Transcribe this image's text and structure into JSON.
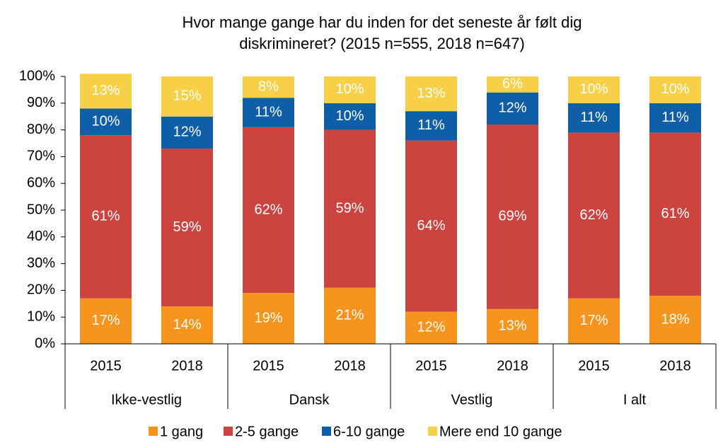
{
  "chart_data": {
    "type": "stacked_bar",
    "title": [
      "Hvor mange gange har du inden for det seneste år følt dig",
      "diskrimineret? (2015 n=555, 2018 n=647)"
    ],
    "categories": [
      "2015",
      "2018",
      "2015",
      "2018",
      "2015",
      "2018",
      "2015",
      "2018"
    ],
    "groups": [
      "Ikke-vestlig",
      "Dansk",
      "Vestlig",
      "I alt"
    ],
    "series": [
      {
        "name": "1 gang",
        "color": "#f7941d",
        "values": [
          17,
          14,
          19,
          21,
          12,
          13,
          17,
          18
        ],
        "value_labels": [
          "17%",
          "14%",
          "19%",
          "21%",
          "12%",
          "13%",
          "17%",
          "18%"
        ]
      },
      {
        "name": "2-5 gange",
        "color": "#cb4440",
        "values": [
          61,
          59,
          62,
          59,
          64,
          69,
          62,
          61
        ],
        "value_labels": [
          "61%",
          "59%",
          "62%",
          "59%",
          "64%",
          "69%",
          "62%",
          "61%"
        ]
      },
      {
        "name": "6-10 gange",
        "color": "#0e5ea8",
        "values": [
          10,
          12,
          11,
          10,
          11,
          12,
          11,
          11
        ],
        "value_labels": [
          "10%",
          "12%",
          "11%",
          "10%",
          "11%",
          "12%",
          "11%",
          "11%"
        ]
      },
      {
        "name": "Mere end 10 gange",
        "color": "#f8d048",
        "values": [
          13,
          15,
          8,
          10,
          13,
          6,
          10,
          10
        ],
        "value_labels": [
          "13%",
          "15%",
          "8%",
          "10%",
          "13%",
          "6%",
          "10%",
          "10%"
        ]
      }
    ],
    "ylim": [
      0,
      100
    ],
    "yticks": [
      {
        "value": 0,
        "label": "0%"
      },
      {
        "value": 10,
        "label": "10%"
      },
      {
        "value": 20,
        "label": "20%"
      },
      {
        "value": 30,
        "label": "30%"
      },
      {
        "value": 40,
        "label": "40%"
      },
      {
        "value": 50,
        "label": "50%"
      },
      {
        "value": 60,
        "label": "60%"
      },
      {
        "value": 70,
        "label": "70%"
      },
      {
        "value": 80,
        "label": "80%"
      },
      {
        "value": 90,
        "label": "90%"
      },
      {
        "value": 100,
        "label": "100%"
      }
    ],
    "legend": "bottom"
  }
}
